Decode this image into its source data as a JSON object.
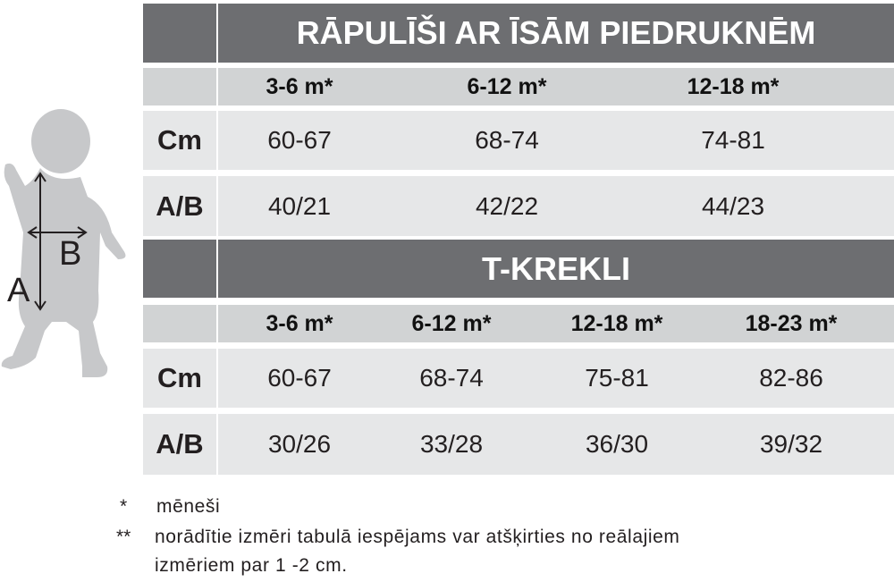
{
  "figure": {
    "labels": [
      "A",
      "B"
    ]
  },
  "tables": [
    {
      "title": "RĀPULĪŠI AR ĪSĀM PIEDRUKNĒM",
      "columns": [
        "3-6 m*",
        "6-12 m*",
        "12-18 m*"
      ],
      "rows": [
        {
          "label": "Cm",
          "values": [
            "60-67",
            "68-74",
            "74-81"
          ]
        },
        {
          "label": "A/B",
          "values": [
            "40/21",
            "42/22",
            "44/23"
          ]
        }
      ]
    },
    {
      "title": "T-KREKLI",
      "columns": [
        "3-6 m*",
        "6-12 m*",
        "12-18 m*",
        "18-23 m*"
      ],
      "rows": [
        {
          "label": "Cm",
          "values": [
            "60-67",
            "68-74",
            "75-81",
            "82-86"
          ]
        },
        {
          "label": "A/B",
          "values": [
            "30/26",
            "33/28",
            "36/30",
            "39/32"
          ]
        }
      ]
    }
  ],
  "footnotes": [
    {
      "marker": "*",
      "lines": [
        "mēneši"
      ]
    },
    {
      "marker": "**",
      "lines": [
        "norādītie izmēri tabulā iespējams var atšķirties no reālajiem",
        "izmēriem par 1 -2 cm."
      ]
    }
  ]
}
